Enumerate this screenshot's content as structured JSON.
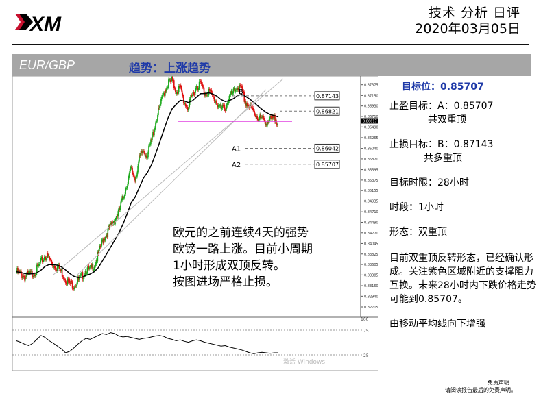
{
  "header": {
    "brand": "XM",
    "title": "技术 分析 日评",
    "date": "2020年03月05日"
  },
  "banner": {
    "pair": "EUR/GBP",
    "trend": "趋势：上涨趋势"
  },
  "sidebar": {
    "target_level": "目标位：0.85707",
    "take_profit": "止盈目标：A：0.85707",
    "take_profit_note": "共双重顶",
    "stop_loss": "止损目标：B：0.87143",
    "stop_loss_note": "共多重顶",
    "time_limit": "目标时限：28小时",
    "timeframe": "时段：1小时",
    "pattern": "形态：双重顶",
    "analysis": "目前双重顶反转形态，已经确认形成。关注紫色区域附近的支撑阻力互换。未来28小时内下跌价格走势可能到0.85707。",
    "ma_note": "由移动平均线向下增强"
  },
  "chart_note": {
    "line1": "欧元的之前连续4天的强势",
    "line2": "欧镑一路上涨。目前小周期",
    "line3": "1小时形成双顶反转。",
    "line4": "按图进场严格止损。"
  },
  "watermark": "激活 Windows",
  "footer": {
    "disclaimer_title": "免责声明",
    "disclaimer_text": "请阅读报告最后的免责声明。"
  },
  "colors": {
    "bull": "#1aa81a",
    "bear": "#e01010",
    "ma": "#000000",
    "support_line": "#e040e0",
    "banner": "#a6a6a6",
    "accent": "#1f3aa8"
  },
  "chart_data": {
    "type": "candlestick",
    "symbol": "EUR/GBP",
    "timeframe": "1H",
    "y_ticks": [
      "0.87375",
      "0.87150",
      "0.86930",
      "0.86710",
      "0.86490",
      "0.86265",
      "0.86040",
      "0.85820",
      "0.85595",
      "0.85375",
      "0.85155",
      "0.84935",
      "0.84710",
      "0.84490",
      "0.84270",
      "0.84045",
      "0.83825",
      "0.83605",
      "0.83385",
      "0.83160",
      "0.82940",
      "0.82715"
    ],
    "last_price": "0.86617",
    "levels": [
      {
        "label": "B",
        "value": "0.87143"
      },
      {
        "label": "",
        "value": "0.86821"
      },
      {
        "label": "A1",
        "value": "0.86042"
      },
      {
        "label": "A2",
        "value": "0.85707"
      }
    ],
    "close_path": [
      0.8345,
      0.834,
      0.8335,
      0.8338,
      0.8342,
      0.835,
      0.8365,
      0.838,
      0.8372,
      0.836,
      0.8355,
      0.8345,
      0.833,
      0.832,
      0.8318,
      0.8325,
      0.8335,
      0.835,
      0.8348,
      0.836,
      0.838,
      0.841,
      0.8425,
      0.844,
      0.8455,
      0.847,
      0.85,
      0.853,
      0.856,
      0.854,
      0.858,
      0.86,
      0.859,
      0.862,
      0.866,
      0.869,
      0.872,
      0.874,
      0.8745,
      0.8725,
      0.873,
      0.87,
      0.869,
      0.8715,
      0.8735,
      0.874,
      0.872,
      0.8725,
      0.871,
      0.87,
      0.8685,
      0.869,
      0.871,
      0.872,
      0.8735,
      0.8725,
      0.87,
      0.869,
      0.868,
      0.867,
      0.8665,
      0.866,
      0.8662,
      0.8665,
      0.8662
    ],
    "rsi": {
      "upper": 75,
      "lower": 25,
      "max": 100,
      "values": [
        55,
        52,
        48,
        45,
        50,
        58,
        66,
        62,
        55,
        50,
        44,
        38,
        30,
        33,
        40,
        48,
        55,
        60,
        58,
        62,
        66,
        70,
        68,
        72,
        70,
        65,
        63,
        64,
        62,
        60,
        58,
        60,
        61,
        63,
        65,
        66,
        64,
        60,
        58,
        55,
        57,
        54,
        52,
        55,
        57,
        55,
        52,
        50,
        48,
        46,
        44,
        45,
        42,
        40,
        38,
        36,
        33,
        30,
        28,
        30,
        31,
        30,
        29,
        30,
        30
      ]
    }
  }
}
